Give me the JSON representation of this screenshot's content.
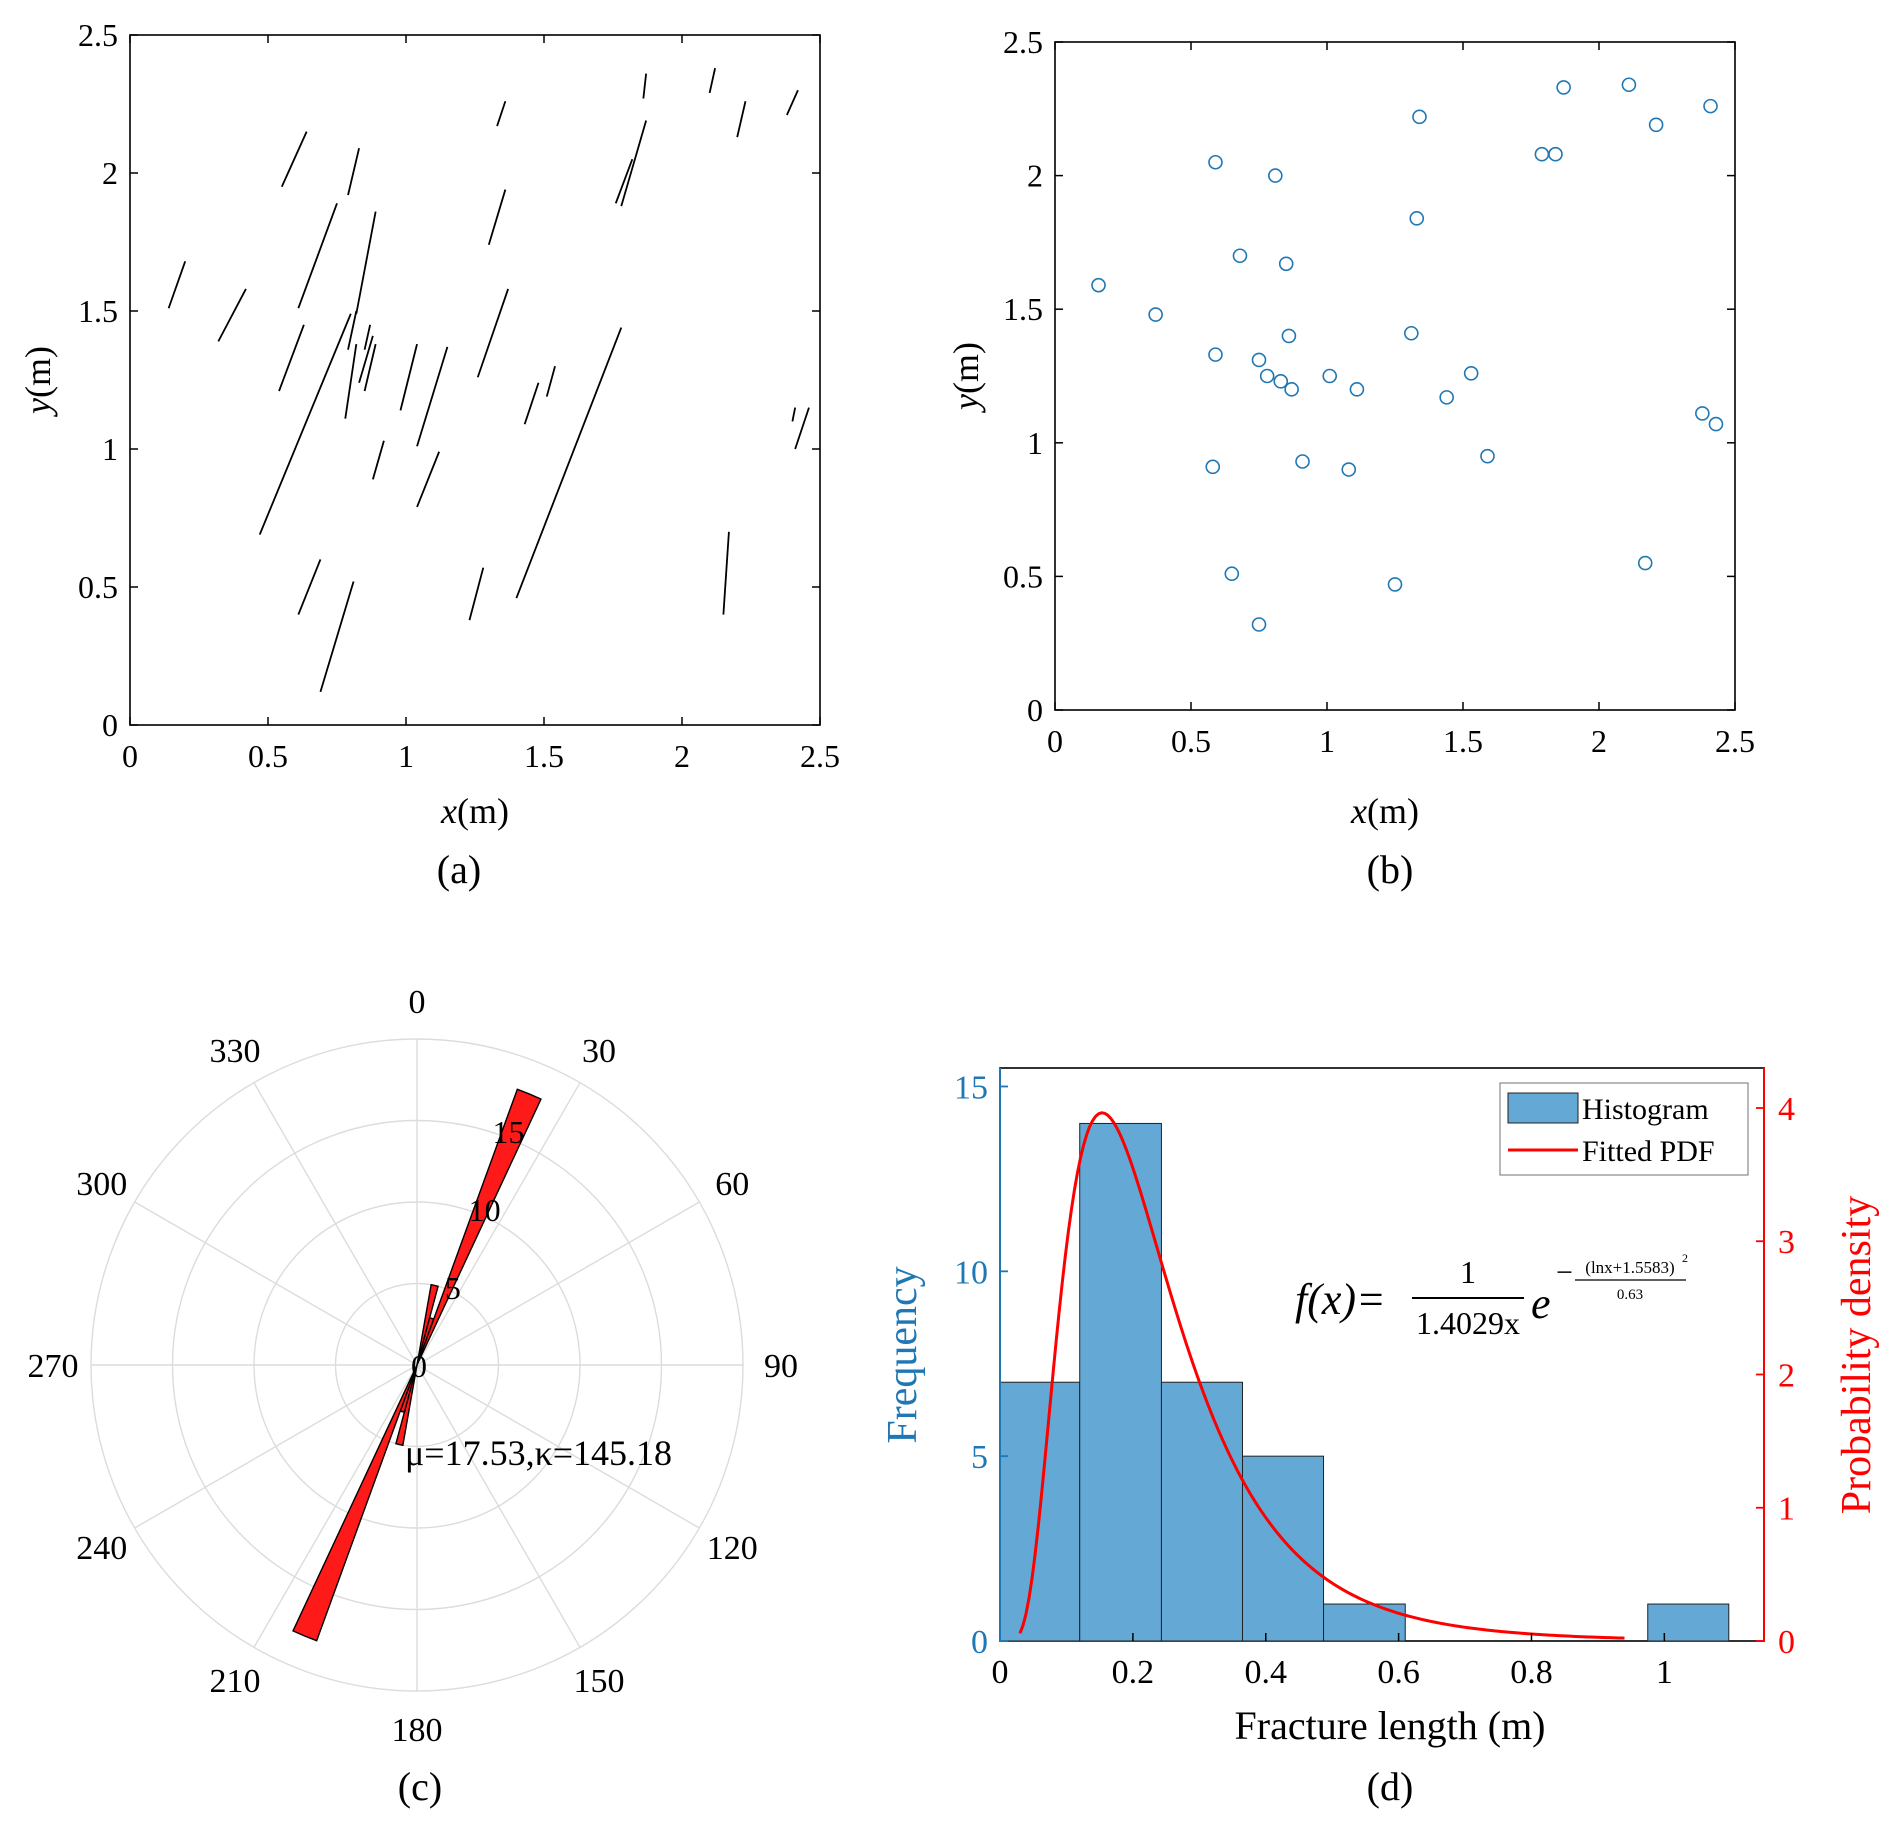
{
  "chart_data": [
    {
      "id": "a",
      "type": "line",
      "panel_label": "(a)",
      "xlabel_var": "x",
      "xlabel_unit": "(m)",
      "ylabel_var": "y",
      "ylabel_unit": "(m)",
      "xlim": [
        0,
        2.5
      ],
      "ylim": [
        0,
        2.5
      ],
      "xticks": [
        "0",
        "0.5",
        "1",
        "1.5",
        "2",
        "2.5"
      ],
      "yticks": [
        "0",
        "0.5",
        "1",
        "1.5",
        "2",
        "2.5"
      ],
      "segments": [
        [
          0.14,
          1.51,
          0.2,
          1.68
        ],
        [
          0.32,
          1.39,
          0.42,
          1.58
        ],
        [
          0.55,
          1.95,
          0.64,
          2.15
        ],
        [
          0.79,
          1.92,
          0.83,
          2.09
        ],
        [
          0.61,
          1.51,
          0.75,
          1.89
        ],
        [
          0.82,
          1.49,
          0.89,
          1.86
        ],
        [
          0.54,
          1.21,
          0.63,
          1.45
        ],
        [
          0.47,
          0.69,
          0.8,
          1.49
        ],
        [
          0.79,
          1.36,
          0.82,
          1.5
        ],
        [
          0.83,
          1.24,
          0.88,
          1.41
        ],
        [
          0.85,
          1.36,
          0.87,
          1.45
        ],
        [
          0.78,
          1.11,
          0.82,
          1.38
        ],
        [
          0.85,
          1.21,
          0.89,
          1.38
        ],
        [
          0.88,
          0.89,
          0.92,
          1.03
        ],
        [
          0.98,
          1.14,
          1.04,
          1.38
        ],
        [
          1.04,
          1.01,
          1.15,
          1.37
        ],
        [
          1.04,
          0.79,
          1.12,
          0.99
        ],
        [
          0.61,
          0.4,
          0.69,
          0.6
        ],
        [
          0.69,
          0.12,
          0.81,
          0.52
        ],
        [
          1.23,
          0.38,
          1.28,
          0.57
        ],
        [
          1.26,
          1.26,
          1.37,
          1.58
        ],
        [
          1.3,
          1.74,
          1.36,
          1.94
        ],
        [
          1.33,
          2.17,
          1.36,
          2.26
        ],
        [
          1.43,
          1.09,
          1.48,
          1.24
        ],
        [
          1.51,
          1.19,
          1.54,
          1.3
        ],
        [
          1.4,
          0.46,
          1.78,
          1.44
        ],
        [
          1.76,
          1.89,
          1.82,
          2.05
        ],
        [
          1.78,
          1.88,
          1.87,
          2.19
        ],
        [
          1.86,
          2.27,
          1.87,
          2.36
        ],
        [
          2.1,
          2.29,
          2.12,
          2.38
        ],
        [
          2.2,
          2.13,
          2.23,
          2.26
        ],
        [
          2.38,
          2.21,
          2.42,
          2.3
        ],
        [
          2.4,
          1.1,
          2.41,
          1.15
        ],
        [
          2.41,
          1.0,
          2.46,
          1.15
        ],
        [
          2.15,
          0.4,
          2.17,
          0.7
        ]
      ]
    },
    {
      "id": "b",
      "type": "scatter",
      "panel_label": "(b)",
      "xlabel_var": "x",
      "xlabel_unit": "(m)",
      "ylabel_var": "y",
      "ylabel_unit": "(m)",
      "xlim": [
        0,
        2.5
      ],
      "ylim": [
        0,
        2.5
      ],
      "xticks": [
        "0",
        "0.5",
        "1",
        "1.5",
        "2",
        "2.5"
      ],
      "yticks": [
        "0",
        "0.5",
        "1",
        "1.5",
        "2",
        "2.5"
      ],
      "marker_color": "#1f77b4",
      "points": [
        [
          0.16,
          1.59
        ],
        [
          0.37,
          1.48
        ],
        [
          0.59,
          2.05
        ],
        [
          0.59,
          1.33
        ],
        [
          0.58,
          0.91
        ],
        [
          0.65,
          0.51
        ],
        [
          0.68,
          1.7
        ],
        [
          0.75,
          1.31
        ],
        [
          0.78,
          1.25
        ],
        [
          0.81,
          2.0
        ],
        [
          0.83,
          1.23
        ],
        [
          0.85,
          1.67
        ],
        [
          0.86,
          1.4
        ],
        [
          0.87,
          1.2
        ],
        [
          0.91,
          0.93
        ],
        [
          1.01,
          1.25
        ],
        [
          1.08,
          0.9
        ],
        [
          1.11,
          1.2
        ],
        [
          1.25,
          0.47
        ],
        [
          1.31,
          1.41
        ],
        [
          1.33,
          1.84
        ],
        [
          1.34,
          2.22
        ],
        [
          1.44,
          1.17
        ],
        [
          1.53,
          1.26
        ],
        [
          1.59,
          0.95
        ],
        [
          1.79,
          2.08
        ],
        [
          1.84,
          2.08
        ],
        [
          1.87,
          2.33
        ],
        [
          2.11,
          2.34
        ],
        [
          2.17,
          0.55
        ],
        [
          2.21,
          2.19
        ],
        [
          2.38,
          1.11
        ],
        [
          2.41,
          2.26
        ],
        [
          2.43,
          1.07
        ],
        [
          0.75,
          0.32
        ]
      ]
    },
    {
      "id": "c",
      "type": "rose",
      "panel_label": "(c)",
      "rlim": [
        0,
        20
      ],
      "rticks": [
        "5",
        "10",
        "15"
      ],
      "angle_labels": [
        "0",
        "30",
        "60",
        "90",
        "120",
        "150",
        "180",
        "210",
        "240",
        "270",
        "300",
        "330"
      ],
      "bar_color": "#ff1a1a",
      "bin_width_deg": 5,
      "bars": [
        {
          "center_deg": 12.5,
          "count": 5
        },
        {
          "center_deg": 17.5,
          "count": 3
        },
        {
          "center_deg": 22.5,
          "count": 18
        },
        {
          "center_deg": 192.5,
          "count": 5
        },
        {
          "center_deg": 197.5,
          "count": 3
        },
        {
          "center_deg": 202.5,
          "count": 18
        }
      ],
      "annotation": "μ=17.53,κ=145.18"
    },
    {
      "id": "d",
      "type": "bar",
      "panel_label": "(d)",
      "xlabel": "Fracture length (m)",
      "ylabel_left": "Frequency",
      "ylabel_right": "Probability density",
      "xlim": [
        0,
        1.15
      ],
      "ylim_left": [
        0,
        15.5
      ],
      "ylim_right": [
        0,
        4.3
      ],
      "xticks": [
        "0",
        "0.2",
        "0.4",
        "0.6",
        "0.8",
        "1"
      ],
      "yticks_left": [
        "0",
        "5",
        "10",
        "15"
      ],
      "yticks_right": [
        "0",
        "1",
        "2",
        "3",
        "4"
      ],
      "bar_color": "#64a8d6",
      "left_axis_color": "#1f77b4",
      "right_axis_color": "#ff0000",
      "bins": [
        {
          "x0": 0.0,
          "x1": 0.12,
          "count": 7
        },
        {
          "x0": 0.12,
          "x1": 0.243,
          "count": 14
        },
        {
          "x0": 0.243,
          "x1": 0.365,
          "count": 7
        },
        {
          "x0": 0.365,
          "x1": 0.487,
          "count": 5
        },
        {
          "x0": 0.487,
          "x1": 0.61,
          "count": 1
        },
        {
          "x0": 0.61,
          "x1": 0.73,
          "count": 0
        },
        {
          "x0": 0.73,
          "x1": 0.853,
          "count": 0
        },
        {
          "x0": 0.853,
          "x1": 0.975,
          "count": 0
        },
        {
          "x0": 0.975,
          "x1": 1.097,
          "count": 1
        }
      ],
      "pdf": {
        "name": "Fitted PDF",
        "mu": -1.5583,
        "denominator": 0.63,
        "coef": 1.4029,
        "x_start": 0.03,
        "x_end": 0.94
      },
      "legend": [
        "Histogram",
        "Fitted PDF"
      ],
      "formula": {
        "lhs": "f(x)=",
        "numerator": "1",
        "denominator": "1.4029x",
        "base": "e",
        "minus": "−",
        "exp_numerator": "(lnx+1.5583)",
        "exp_power": "2",
        "exp_denominator": "0.63"
      }
    }
  ]
}
